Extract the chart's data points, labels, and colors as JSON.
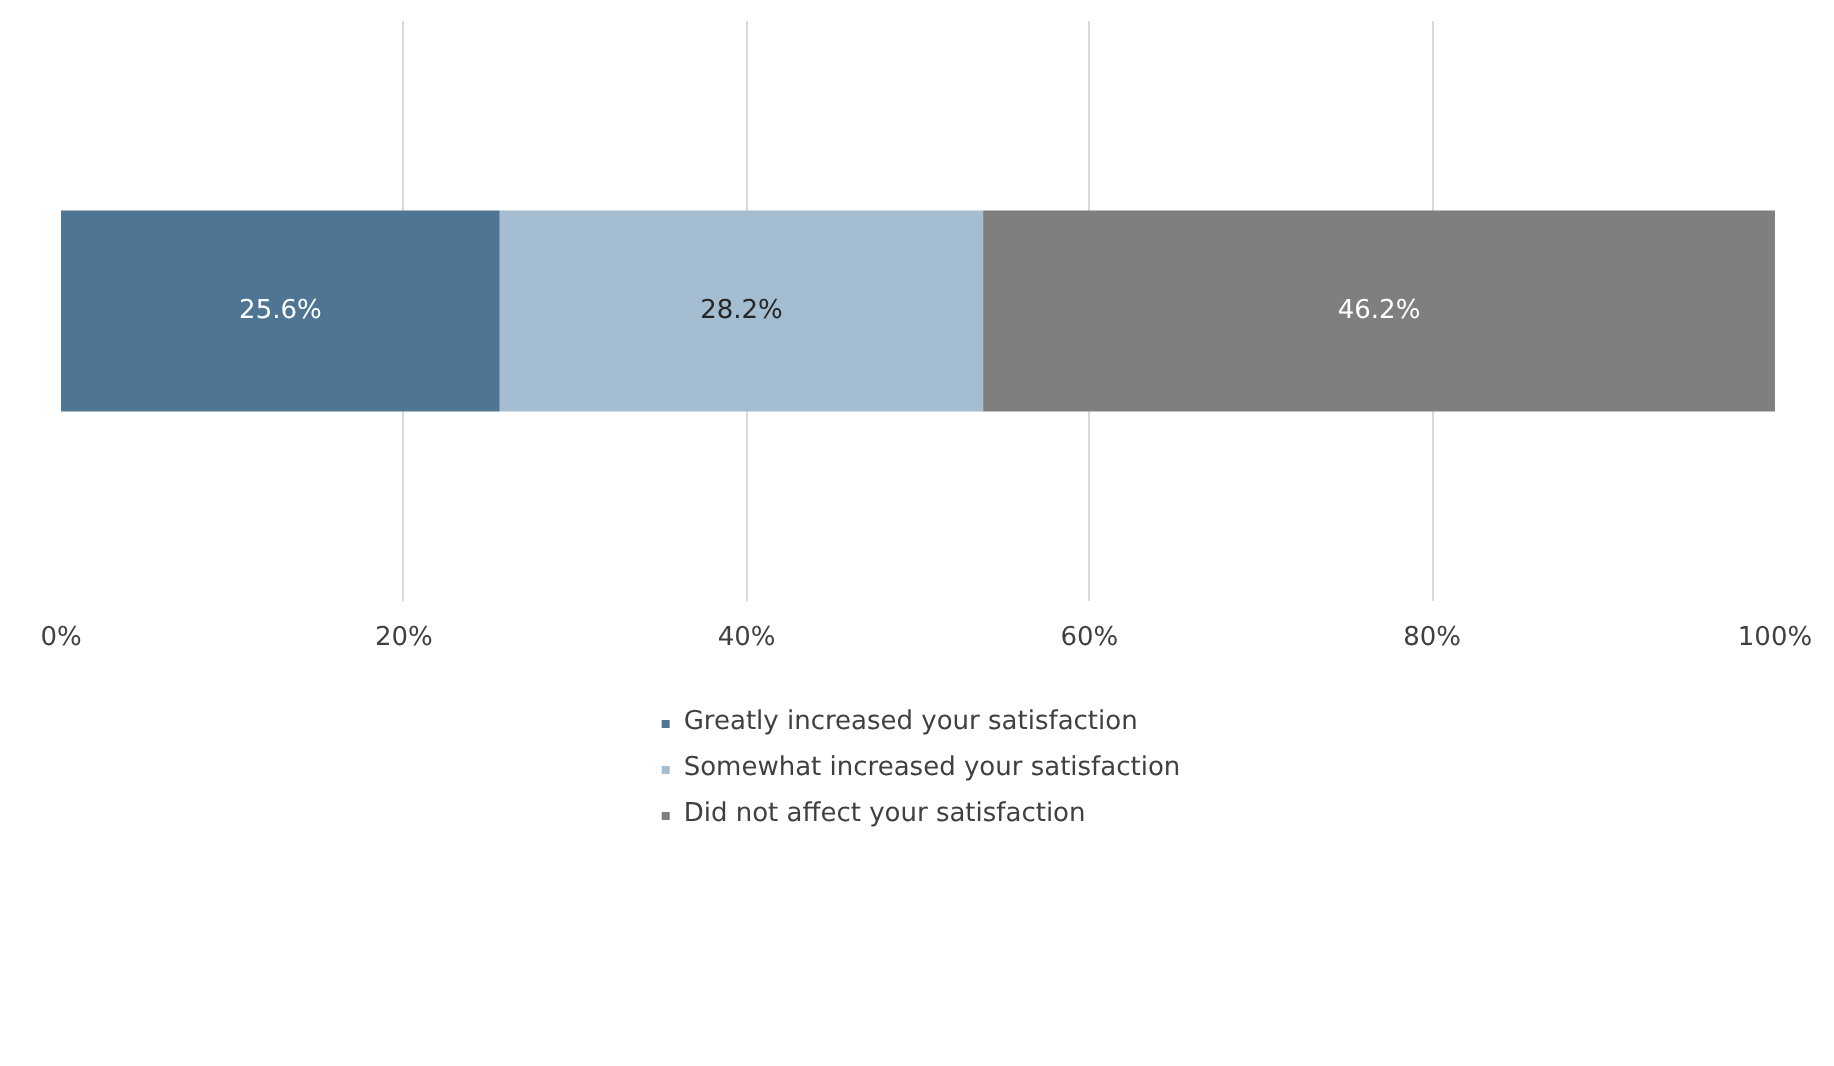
{
  "chart_data": {
    "type": "bar",
    "orientation": "horizontal",
    "stacked": true,
    "categories": [
      null
    ],
    "series": [
      {
        "name": "Greatly increased your satisfaction",
        "color": "#4e7694",
        "values": [
          25.6
        ],
        "value_labels": [
          "25.6%"
        ]
      },
      {
        "name": "Somewhat increased your satisfaction",
        "color": "#a4bdd0",
        "values": [
          28.2
        ],
        "value_labels": [
          "28.2%"
        ]
      },
      {
        "name": "Did not affect your satisfaction",
        "color": "#7f7f7f",
        "values": [
          46.2
        ],
        "value_labels": [
          "46.2%"
        ]
      }
    ],
    "xlim": [
      0,
      100
    ],
    "xticks": [
      {
        "value": 0,
        "label": "0%"
      },
      {
        "value": 20,
        "label": "20%"
      },
      {
        "value": 40,
        "label": "40%"
      },
      {
        "value": 60,
        "label": "60%"
      },
      {
        "value": 80,
        "label": "80%"
      },
      {
        "value": 100,
        "label": "100%"
      }
    ],
    "grid": "x",
    "legend": "bottom",
    "tick_labels": "x"
  }
}
